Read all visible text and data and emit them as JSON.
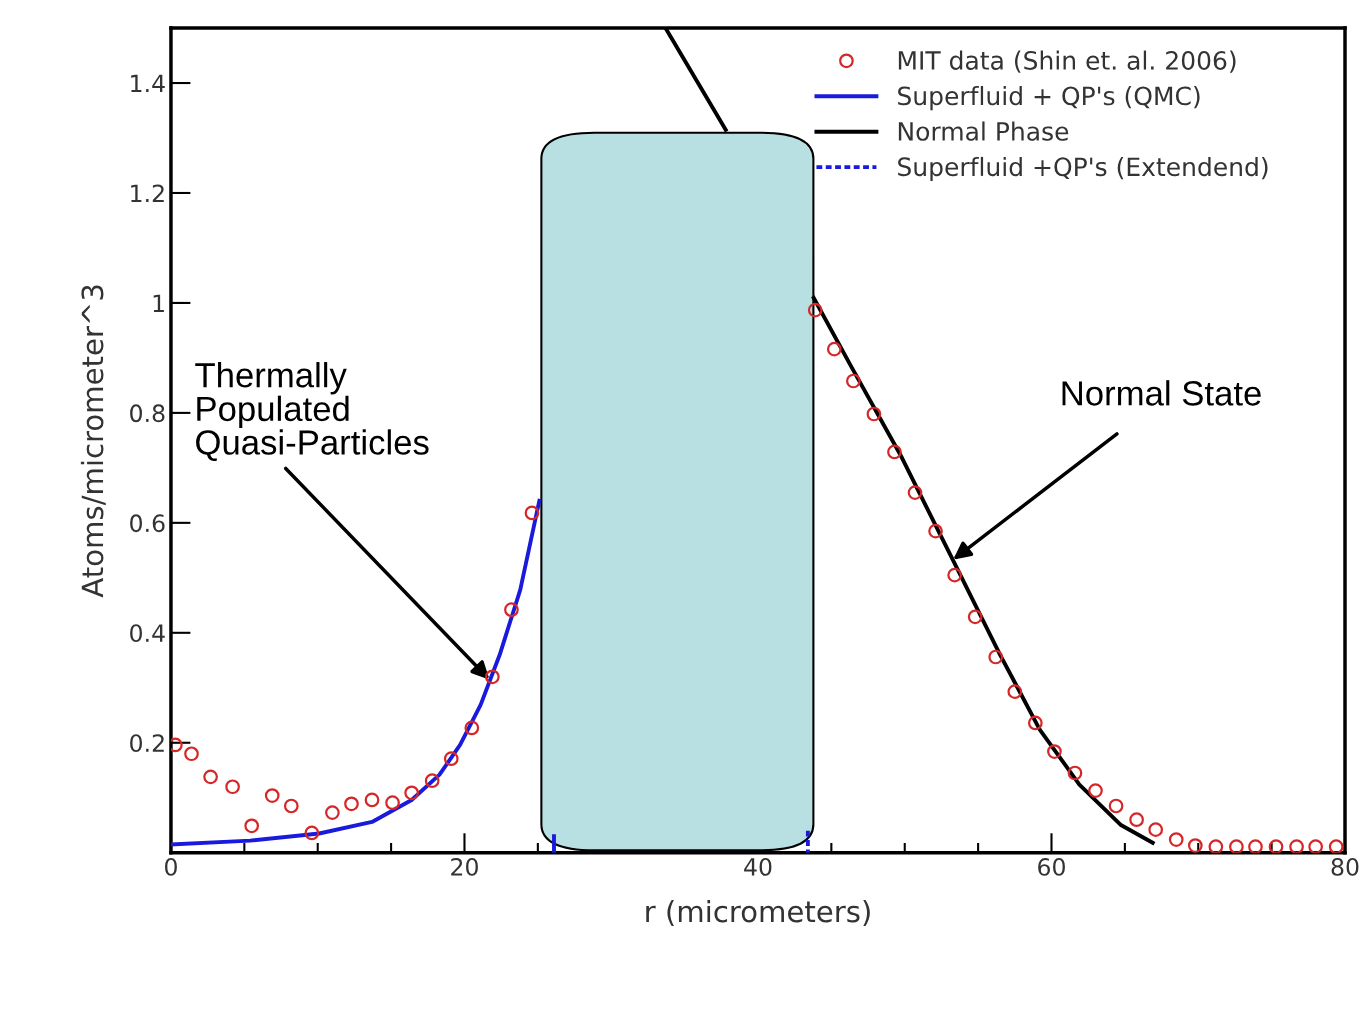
{
  "chart_data": {
    "type": "scatter",
    "xlabel": "r (micrometers)",
    "ylabel": "Atoms/micrometer^3",
    "xlim": [
      0,
      80
    ],
    "xticks": [
      0,
      20,
      40,
      60,
      80
    ],
    "ylim": [
      0,
      1.5
    ],
    "yticks": [
      0.2,
      0.4,
      0.6,
      0.8,
      1,
      1.2,
      1.4
    ],
    "legend": "top right",
    "grid": false,
    "series": [
      {
        "name": "MIT data (Shin et. al. 2006)",
        "marker": "circle",
        "color": "#d62728",
        "x": [
          0.3,
          1.4,
          2.7,
          4.2,
          5.5,
          6.9,
          8.2,
          9.6,
          11.0,
          12.3,
          13.7,
          15.1,
          16.4,
          17.8,
          19.1,
          20.5,
          21.9,
          23.2,
          24.6,
          43.9,
          45.2,
          46.5,
          47.9,
          49.3,
          50.7,
          52.1,
          53.4,
          54.8,
          56.2,
          57.5,
          58.9,
          60.2,
          61.6,
          63.0,
          64.4,
          65.8,
          67.1,
          68.5,
          69.8,
          71.2,
          72.6,
          73.9,
          75.3,
          76.7,
          78.0,
          79.4
        ],
        "values": [
          0.196,
          0.18,
          0.138,
          0.12,
          0.049,
          0.104,
          0.085,
          0.036,
          0.073,
          0.089,
          0.096,
          0.091,
          0.109,
          0.131,
          0.171,
          0.227,
          0.32,
          0.442,
          0.618,
          0.987,
          0.916,
          0.858,
          0.798,
          0.729,
          0.655,
          0.585,
          0.505,
          0.429,
          0.356,
          0.293,
          0.236,
          0.184,
          0.145,
          0.113,
          0.085,
          0.06,
          0.042,
          0.024,
          0.013,
          0.011,
          0.011,
          0.011,
          0.011,
          0.011,
          0.011,
          0.011
        ]
      },
      {
        "name": "Superfluid + QP's (QMC)",
        "type": "line",
        "line_style": "solid",
        "color": "#1a1adc",
        "x": [
          0,
          5.4,
          10.1,
          13.7,
          16.4,
          18.3,
          19.7,
          21.1,
          22.4,
          23.8,
          25.1,
          25.8,
          26.1,
          26.1
        ],
        "values": [
          0.015,
          0.022,
          0.035,
          0.056,
          0.096,
          0.142,
          0.196,
          0.269,
          0.36,
          0.478,
          0.64,
          null,
          0.03,
          0.0
        ]
      },
      {
        "name": "Normal Phase",
        "type": "line",
        "line_style": "solid",
        "color": "#000000",
        "x": [
          33.7,
          37.8,
          40.0,
          43.8,
          46.3,
          49.7,
          53.1,
          56.5,
          59.2,
          61.9,
          64.7,
          66.9
        ],
        "values": [
          1.5,
          1.315,
          null,
          1.009,
          0.887,
          0.724,
          0.542,
          0.36,
          0.224,
          0.124,
          0.051,
          0.018
        ]
      },
      {
        "name": "Superfluid +QP's (Extendend)",
        "type": "line",
        "line_style": "dashed",
        "color": "#1a1adc",
        "x": [
          43.4,
          43.4
        ],
        "values": [
          0.04,
          0.0
        ]
      }
    ],
    "annotations": [
      {
        "text": "Thermally\nPopulated\nQuasi-Particles",
        "x": 21.7,
        "y": 0.315
      },
      {
        "text": "Normal State",
        "x": 53.3,
        "y": 0.533
      }
    ]
  }
}
